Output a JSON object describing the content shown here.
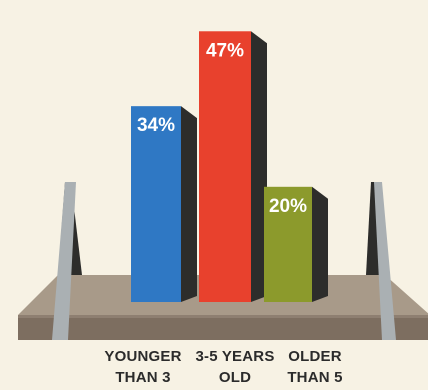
{
  "chart_data": {
    "type": "bar",
    "categories": [
      [
        "YOUNGER",
        "THAN 3"
      ],
      [
        "3-5 YEARS",
        "OLD"
      ],
      [
        "OLDER",
        "THAN 5"
      ]
    ],
    "values": [
      34,
      47,
      20
    ],
    "value_labels": [
      "34%",
      "47%",
      "20%"
    ],
    "unit": "%",
    "ylim": [
      0,
      50
    ],
    "grid": false,
    "legend": "none",
    "colors": [
      "#2f78c4",
      "#e8412d",
      "#8c9a2c"
    ],
    "shadow_color": "#2d2d2b",
    "shelf_color": "#a89a89",
    "post_color": "#aab0b3"
  }
}
